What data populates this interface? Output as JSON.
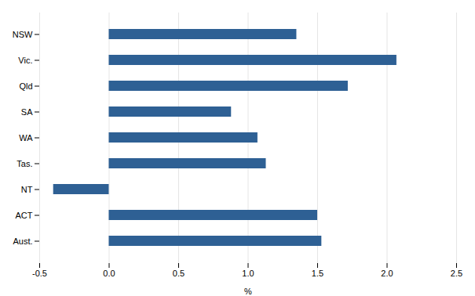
{
  "chart_data": {
    "type": "bar",
    "orientation": "horizontal",
    "categories": [
      "NSW",
      "Vic.",
      "Qld",
      "SA",
      "WA",
      "Tas.",
      "NT",
      "ACT",
      "Aust."
    ],
    "values": [
      1.35,
      2.07,
      1.72,
      0.88,
      1.07,
      1.13,
      -0.4,
      1.5,
      1.53
    ],
    "color": "#2E6094",
    "xlabel": "%",
    "xlim": [
      -0.5,
      2.5
    ],
    "xticks": [
      -0.5,
      {
        "value": 0,
        "label": "0.0"
      },
      0.5,
      {
        "value": 1,
        "label": "1.0"
      },
      1.5,
      {
        "value": 2,
        "label": "2.0"
      },
      2.5
    ],
    "grid": true
  }
}
